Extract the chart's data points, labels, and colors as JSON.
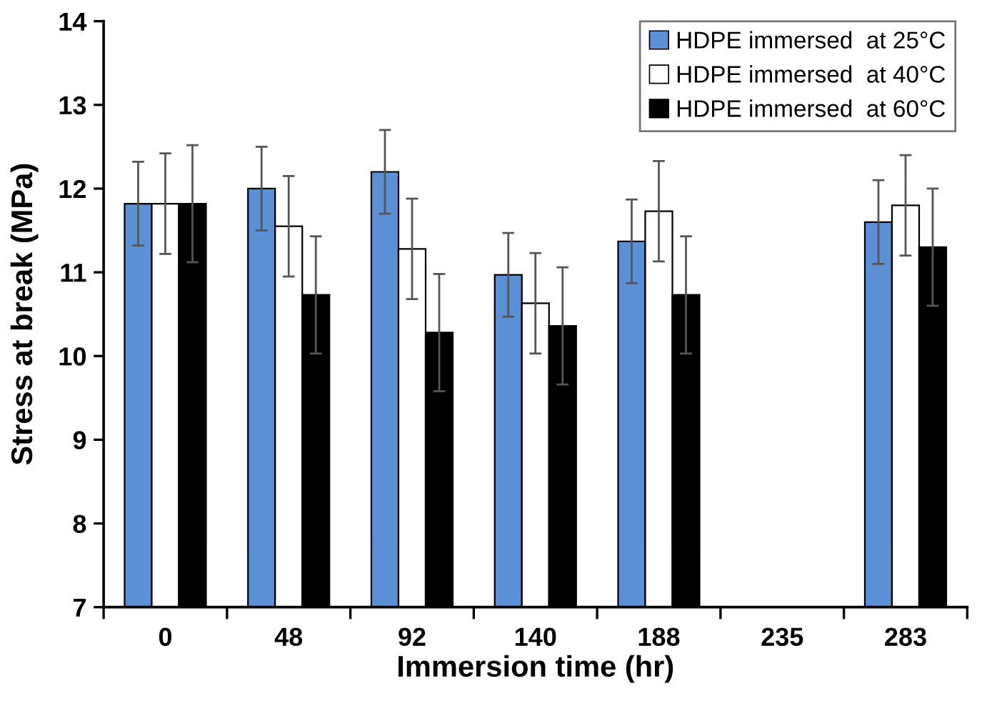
{
  "chart_data": {
    "type": "bar",
    "xlabel": "Immersion time (hr)",
    "ylabel": "Stress at break (MPa)",
    "categories": [
      "0",
      "48",
      "92",
      "140",
      "188",
      "235",
      "283"
    ],
    "series": [
      {
        "name": "HDPE immersed  at 25°C",
        "color": "#5b8fd6",
        "values": [
          11.82,
          12.0,
          12.2,
          10.97,
          11.37,
          null,
          11.6
        ],
        "errors": [
          0.5,
          0.5,
          0.5,
          0.5,
          0.5,
          null,
          0.5
        ]
      },
      {
        "name": "HDPE immersed  at 40°C",
        "color": "#ffffff",
        "values": [
          11.82,
          11.55,
          11.28,
          10.63,
          11.73,
          null,
          11.8
        ],
        "errors": [
          0.6,
          0.6,
          0.6,
          0.6,
          0.6,
          null,
          0.6
        ]
      },
      {
        "name": "HDPE immersed  at 60°C",
        "color": "#000000",
        "values": [
          11.82,
          10.73,
          10.28,
          10.36,
          10.73,
          null,
          11.3
        ],
        "errors": [
          0.7,
          0.7,
          0.7,
          0.7,
          0.7,
          null,
          0.7
        ]
      }
    ],
    "ylim": [
      7,
      14
    ],
    "yticks": [
      7,
      8,
      9,
      10,
      11,
      12,
      13,
      14
    ],
    "grid": false,
    "legend": "top right"
  }
}
